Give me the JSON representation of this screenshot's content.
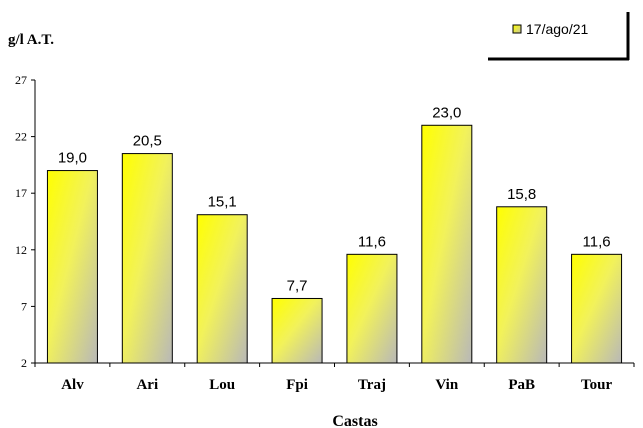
{
  "chart_data": {
    "type": "bar",
    "ylabel": "g/l A.T.",
    "xlabel": "Castas",
    "categories": [
      "Alv",
      "Ari",
      "Lou",
      "Fpi",
      "Traj",
      "Vin",
      "PaB",
      "Tour"
    ],
    "series": [
      {
        "name": "17/ago/21",
        "values": [
          19.0,
          20.5,
          15.1,
          7.7,
          11.6,
          23.0,
          15.8,
          11.6
        ],
        "labels": [
          "19,0",
          "20,5",
          "15,1",
          "7,7",
          "11,6",
          "23,0",
          "15,8",
          "11,6"
        ]
      }
    ],
    "ylim": [
      2,
      27
    ],
    "yticks": [
      2,
      7,
      12,
      17,
      22,
      27
    ],
    "grid": false,
    "legend_position": "top-right",
    "colors": {
      "bar_top": "#ffff00",
      "bar_bottom": "#b8b8b8",
      "axis": "#000000"
    }
  }
}
